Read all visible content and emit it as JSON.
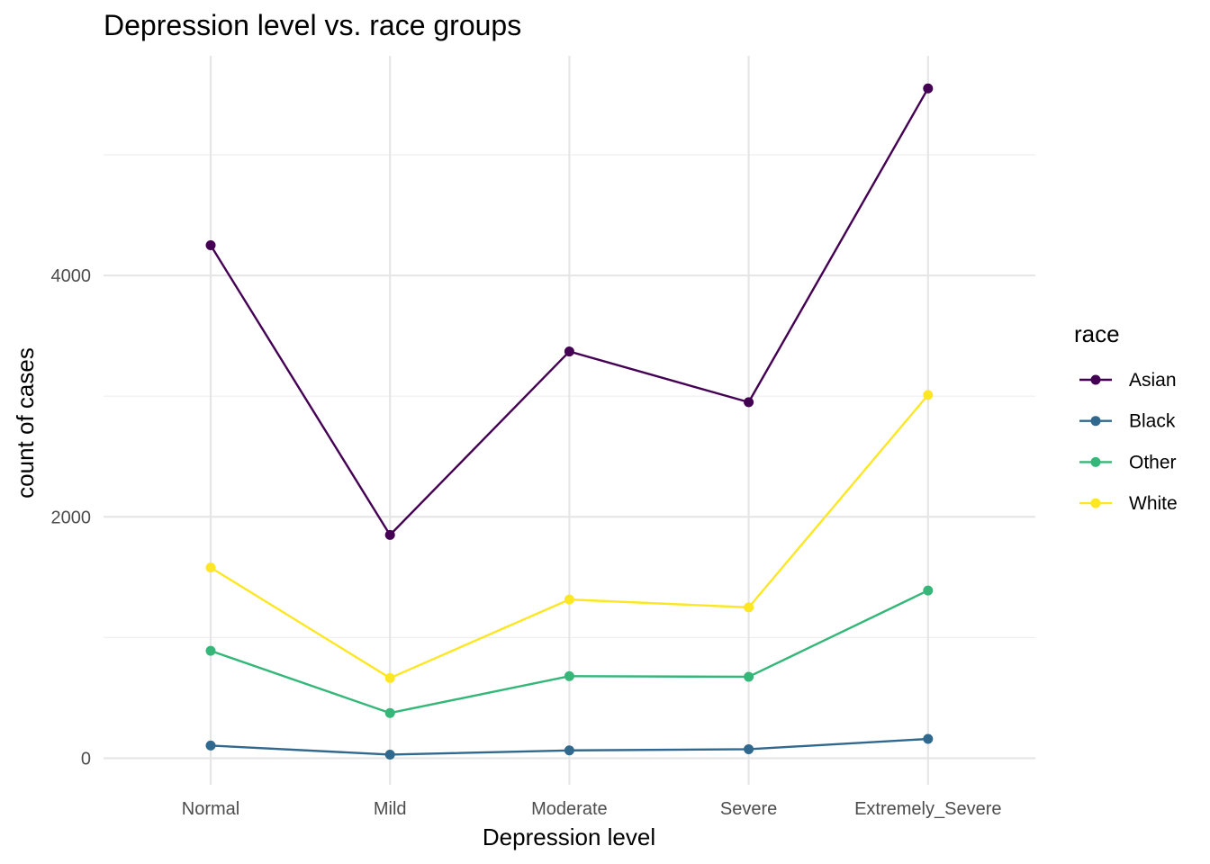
{
  "chart_data": {
    "type": "line",
    "title": "Depression level vs. race groups",
    "xlabel": "Depression level",
    "ylabel": "count of cases",
    "categories": [
      "Normal",
      "Mild",
      "Moderate",
      "Severe",
      "Extremely_Severe"
    ],
    "ylim": [
      -220,
      5820
    ],
    "yticks": [
      0,
      2000,
      4000
    ],
    "grid": true,
    "legend": {
      "title": "race",
      "position": "right"
    },
    "series": [
      {
        "name": "Asian",
        "color": "#440154",
        "values": [
          4250,
          1850,
          3370,
          2950,
          5550
        ]
      },
      {
        "name": "Black",
        "color": "#31688E",
        "values": [
          105,
          30,
          65,
          75,
          160
        ]
      },
      {
        "name": "Other",
        "color": "#35B779",
        "values": [
          890,
          375,
          680,
          675,
          1390
        ]
      },
      {
        "name": "White",
        "color": "#FDE725",
        "values": [
          1580,
          665,
          1315,
          1250,
          3010
        ]
      }
    ]
  }
}
